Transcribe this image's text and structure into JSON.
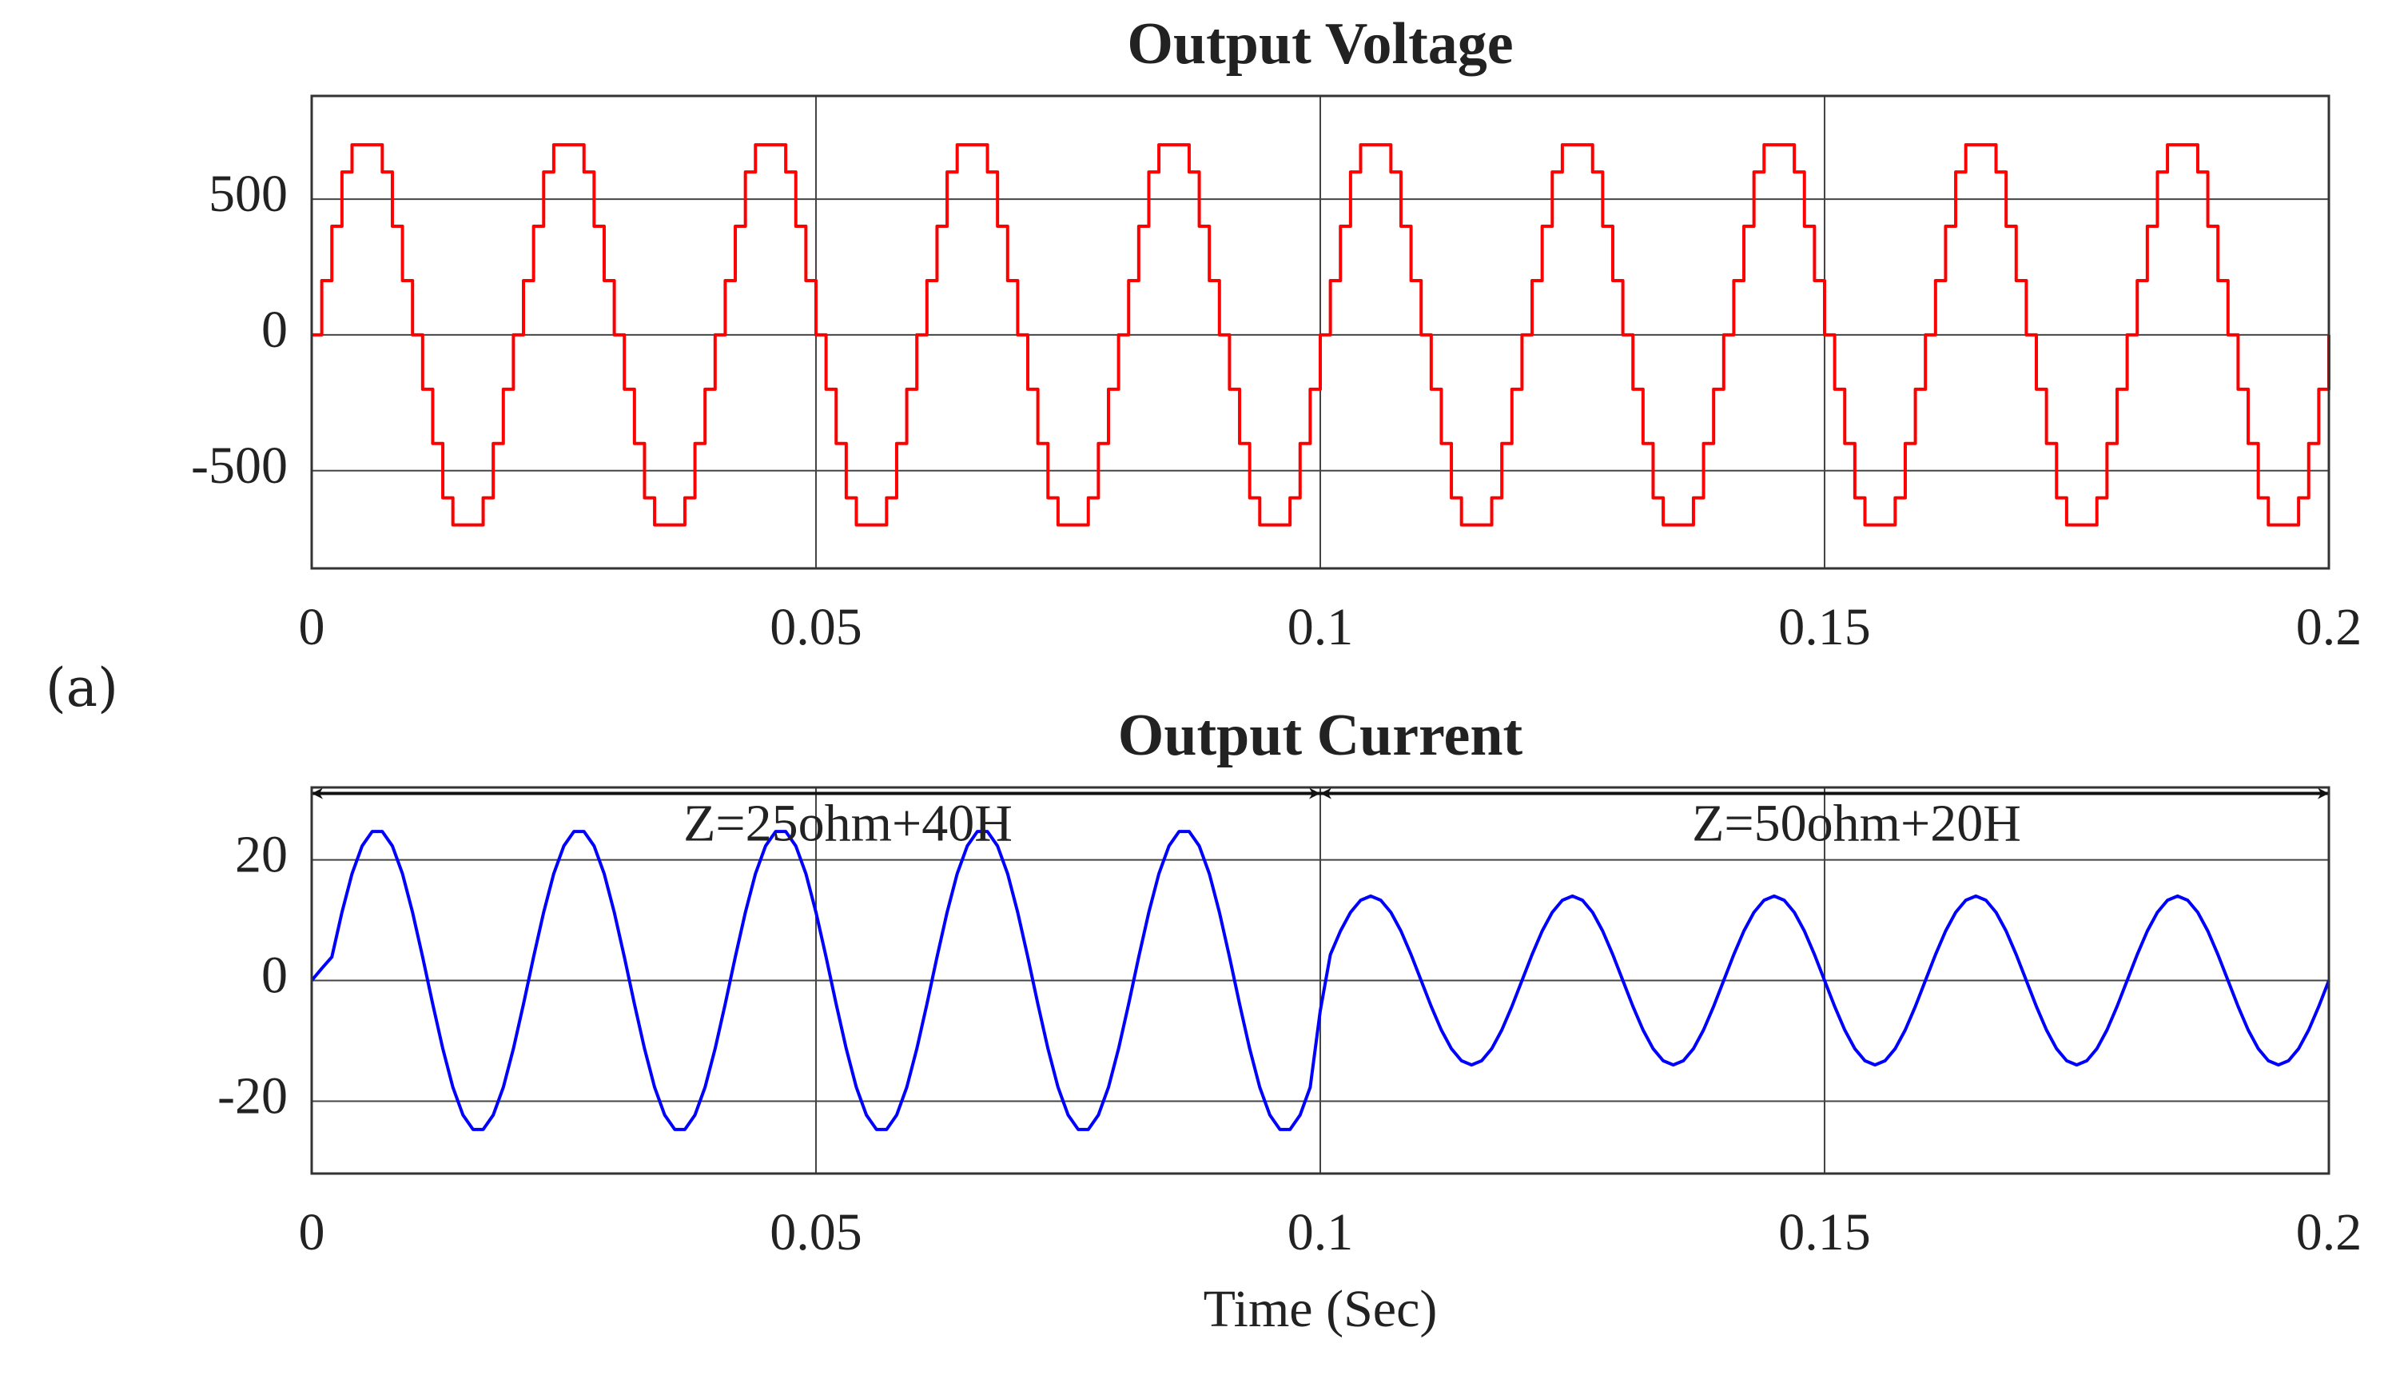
{
  "panel_label": "(a)",
  "chart_data": [
    {
      "type": "step",
      "title": "Output Voltage",
      "color": "#ff0000",
      "grid": true,
      "x": [
        0,
        0.001,
        0.002,
        0.003,
        0.004,
        0.005,
        0.006,
        0.007,
        0.008,
        0.009,
        0.01,
        0.011,
        0.012,
        0.013,
        0.014,
        0.015,
        0.016,
        0.017,
        0.018,
        0.019,
        0.02,
        0.021,
        0.022,
        0.023,
        0.024,
        0.025,
        0.026,
        0.027,
        0.028,
        0.029,
        0.03,
        0.031,
        0.032,
        0.033,
        0.034,
        0.035,
        0.036,
        0.037,
        0.038,
        0.039,
        0.04,
        0.041,
        0.042,
        0.043,
        0.044,
        0.045,
        0.046,
        0.047,
        0.048,
        0.049,
        0.05,
        0.051,
        0.052,
        0.053,
        0.054,
        0.055,
        0.056,
        0.057,
        0.058,
        0.059,
        0.06,
        0.061,
        0.062,
        0.063,
        0.064,
        0.065,
        0.066,
        0.067,
        0.068,
        0.069,
        0.07,
        0.071,
        0.072,
        0.073,
        0.074,
        0.075,
        0.076,
        0.077,
        0.078,
        0.079,
        0.08,
        0.081,
        0.082,
        0.083,
        0.084,
        0.085,
        0.086,
        0.087,
        0.088,
        0.089,
        0.09,
        0.091,
        0.092,
        0.093,
        0.094,
        0.095,
        0.096,
        0.097,
        0.098,
        0.099,
        0.1,
        0.101,
        0.102,
        0.103,
        0.104,
        0.105,
        0.106,
        0.107,
        0.108,
        0.109,
        0.11,
        0.111,
        0.112,
        0.113,
        0.114,
        0.115,
        0.116,
        0.117,
        0.118,
        0.119,
        0.12,
        0.121,
        0.122,
        0.123,
        0.124,
        0.125,
        0.126,
        0.127,
        0.128,
        0.129,
        0.13,
        0.131,
        0.132,
        0.133,
        0.134,
        0.135,
        0.136,
        0.137,
        0.138,
        0.139,
        0.14,
        0.141,
        0.142,
        0.143,
        0.144,
        0.145,
        0.146,
        0.147,
        0.148,
        0.149,
        0.15,
        0.151,
        0.152,
        0.153,
        0.154,
        0.155,
        0.156,
        0.157,
        0.158,
        0.159,
        0.16,
        0.161,
        0.162,
        0.163,
        0.164,
        0.165,
        0.166,
        0.167,
        0.168,
        0.169,
        0.17,
        0.171,
        0.172,
        0.173,
        0.174,
        0.175,
        0.176,
        0.177,
        0.178,
        0.179,
        0.18,
        0.181,
        0.182,
        0.183,
        0.184,
        0.185,
        0.186,
        0.187,
        0.188,
        0.189,
        0.19,
        0.191,
        0.192,
        0.193,
        0.194,
        0.195,
        0.196,
        0.197,
        0.198,
        0.199,
        0.2
      ],
      "values": [
        0,
        200,
        400,
        600,
        700,
        700,
        700,
        600,
        400,
        200,
        0,
        -200,
        -400,
        -600,
        -700,
        -700,
        -700,
        -600,
        -400,
        -200,
        0,
        200,
        400,
        600,
        700,
        700,
        700,
        600,
        400,
        200,
        0,
        -200,
        -400,
        -600,
        -700,
        -700,
        -700,
        -600,
        -400,
        -200,
        0,
        200,
        400,
        600,
        700,
        700,
        700,
        600,
        400,
        200,
        0,
        -200,
        -400,
        -600,
        -700,
        -700,
        -700,
        -600,
        -400,
        -200,
        0,
        200,
        400,
        600,
        700,
        700,
        700,
        600,
        400,
        200,
        0,
        -200,
        -400,
        -600,
        -700,
        -700,
        -700,
        -600,
        -400,
        -200,
        0,
        200,
        400,
        600,
        700,
        700,
        700,
        600,
        400,
        200,
        0,
        -200,
        -400,
        -600,
        -700,
        -700,
        -700,
        -600,
        -400,
        -200,
        0,
        200,
        400,
        600,
        700,
        700,
        700,
        600,
        400,
        200,
        0,
        -200,
        -400,
        -600,
        -700,
        -700,
        -700,
        -600,
        -400,
        -200,
        0,
        200,
        400,
        600,
        700,
        700,
        700,
        600,
        400,
        200,
        0,
        -200,
        -400,
        -600,
        -700,
        -700,
        -700,
        -600,
        -400,
        -200,
        0,
        200,
        400,
        600,
        700,
        700,
        700,
        600,
        400,
        200,
        0,
        -200,
        -400,
        -600,
        -700,
        -700,
        -700,
        -600,
        -400,
        -200,
        0,
        200,
        400,
        600,
        700,
        700,
        700,
        600,
        400,
        200,
        0,
        -200,
        -400,
        -600,
        -700,
        -700,
        -700,
        -600,
        -400,
        -200,
        0,
        200,
        400,
        600,
        700,
        700,
        700,
        600,
        400,
        200,
        0,
        -200,
        -400,
        -600,
        -700,
        -700,
        -700,
        -600,
        -400,
        -200,
        0
      ],
      "xlim": [
        0,
        0.2
      ],
      "xticks": [
        0,
        0.05,
        0.1,
        0.15,
        0.2
      ],
      "ylim": [
        -860,
        880
      ],
      "yticks": [
        -500,
        0,
        500
      ]
    },
    {
      "type": "line",
      "title": "Output Current",
      "color": "#0000ff",
      "grid": true,
      "xlabel": "Time (Sec)",
      "x": [
        0,
        0.001,
        0.002,
        0.003,
        0.004,
        0.005,
        0.006,
        0.007,
        0.008,
        0.009,
        0.01,
        0.011,
        0.012,
        0.013,
        0.014,
        0.015,
        0.016,
        0.017,
        0.018,
        0.019,
        0.02,
        0.021,
        0.022,
        0.023,
        0.024,
        0.025,
        0.026,
        0.027,
        0.028,
        0.029,
        0.03,
        0.031,
        0.032,
        0.033,
        0.034,
        0.035,
        0.036,
        0.037,
        0.038,
        0.039,
        0.04,
        0.041,
        0.042,
        0.043,
        0.044,
        0.045,
        0.046,
        0.047,
        0.048,
        0.049,
        0.05,
        0.051,
        0.052,
        0.053,
        0.054,
        0.055,
        0.056,
        0.057,
        0.058,
        0.059,
        0.06,
        0.061,
        0.062,
        0.063,
        0.064,
        0.065,
        0.066,
        0.067,
        0.068,
        0.069,
        0.07,
        0.071,
        0.072,
        0.073,
        0.074,
        0.075,
        0.076,
        0.077,
        0.078,
        0.079,
        0.08,
        0.081,
        0.082,
        0.083,
        0.084,
        0.085,
        0.086,
        0.087,
        0.088,
        0.089,
        0.09,
        0.091,
        0.092,
        0.093,
        0.094,
        0.095,
        0.096,
        0.097,
        0.098,
        0.099,
        0.1,
        0.101,
        0.102,
        0.103,
        0.104,
        0.105,
        0.106,
        0.107,
        0.108,
        0.109,
        0.11,
        0.111,
        0.112,
        0.113,
        0.114,
        0.115,
        0.116,
        0.117,
        0.118,
        0.119,
        0.12,
        0.121,
        0.122,
        0.123,
        0.124,
        0.125,
        0.126,
        0.127,
        0.128,
        0.129,
        0.13,
        0.131,
        0.132,
        0.133,
        0.134,
        0.135,
        0.136,
        0.137,
        0.138,
        0.139,
        0.14,
        0.141,
        0.142,
        0.143,
        0.144,
        0.145,
        0.146,
        0.147,
        0.148,
        0.149,
        0.15,
        0.151,
        0.152,
        0.153,
        0.154,
        0.155,
        0.156,
        0.157,
        0.158,
        0.159,
        0.16,
        0.161,
        0.162,
        0.163,
        0.164,
        0.165,
        0.166,
        0.167,
        0.168,
        0.169,
        0.17,
        0.171,
        0.172,
        0.173,
        0.174,
        0.175,
        0.176,
        0.177,
        0.178,
        0.179,
        0.18,
        0.181,
        0.182,
        0.183,
        0.184,
        0.185,
        0.186,
        0.187,
        0.188,
        0.189,
        0.19,
        0.191,
        0.192,
        0.193,
        0.194,
        0.195,
        0.196,
        0.197,
        0.198,
        0.199,
        0.2
      ],
      "values": [
        0,
        2,
        3.9,
        11.3,
        17.7,
        22.3,
        24.7,
        24.7,
        22.3,
        17.7,
        11.3,
        3.9,
        -3.9,
        -11.3,
        -17.7,
        -22.3,
        -24.7,
        -24.7,
        -22.3,
        -17.7,
        -11.3,
        -3.9,
        3.9,
        11.3,
        17.7,
        22.3,
        24.7,
        24.7,
        22.3,
        17.7,
        11.3,
        3.9,
        -3.9,
        -11.3,
        -17.7,
        -22.3,
        -24.7,
        -24.7,
        -22.3,
        -17.7,
        -11.3,
        -3.9,
        3.9,
        11.3,
        17.7,
        22.3,
        24.7,
        24.7,
        22.3,
        17.7,
        11.3,
        3.9,
        -3.9,
        -11.3,
        -17.7,
        -22.3,
        -24.7,
        -24.7,
        -22.3,
        -17.7,
        -11.3,
        -3.9,
        3.9,
        11.3,
        17.7,
        22.3,
        24.7,
        24.7,
        22.3,
        17.7,
        11.3,
        3.9,
        -3.9,
        -11.3,
        -17.7,
        -22.3,
        -24.7,
        -24.7,
        -22.3,
        -17.7,
        -11.3,
        -3.9,
        3.9,
        11.3,
        17.7,
        22.3,
        24.7,
        24.7,
        22.3,
        17.7,
        11.3,
        3.9,
        -3.9,
        -11.3,
        -17.7,
        -22.3,
        -24.7,
        -24.7,
        -22.3,
        -17.7,
        -5,
        4.3,
        8.2,
        11.3,
        13.3,
        14,
        13.3,
        11.3,
        8.2,
        4.3,
        0,
        -4.3,
        -8.2,
        -11.3,
        -13.3,
        -14,
        -13.3,
        -11.3,
        -8.2,
        -4.3,
        0,
        4.3,
        8.2,
        11.3,
        13.3,
        14,
        13.3,
        11.3,
        8.2,
        4.3,
        0,
        -4.3,
        -8.2,
        -11.3,
        -13.3,
        -14,
        -13.3,
        -11.3,
        -8.2,
        -4.3,
        0,
        4.3,
        8.2,
        11.3,
        13.3,
        14,
        13.3,
        11.3,
        8.2,
        4.3,
        0,
        -4.3,
        -8.2,
        -11.3,
        -13.3,
        -14,
        -13.3,
        -11.3,
        -8.2,
        -4.3,
        0,
        4.3,
        8.2,
        11.3,
        13.3,
        14,
        13.3,
        11.3,
        8.2,
        4.3,
        0,
        -4.3,
        -8.2,
        -11.3,
        -13.3,
        -14,
        -13.3,
        -11.3,
        -8.2,
        -4.3,
        0,
        4.3,
        8.2,
        11.3,
        13.3,
        14,
        13.3,
        11.3,
        8.2,
        4.3,
        0,
        -4.3,
        -8.2,
        -11.3,
        -13.3,
        -14,
        -13.3,
        -11.3,
        -8.2,
        -4.3,
        0
      ],
      "xlim": [
        0,
        0.2
      ],
      "xticks": [
        0,
        0.05,
        0.1,
        0.15,
        0.2
      ],
      "ylim": [
        -32,
        32
      ],
      "yticks": [
        -20,
        0,
        20
      ],
      "annotations": [
        {
          "text": "Z=25ohm+40H",
          "x_range": [
            0,
            0.1
          ],
          "y": 31
        },
        {
          "text": "Z=50ohm+20H",
          "x_range": [
            0.1,
            0.2
          ],
          "y": 31
        }
      ]
    }
  ]
}
